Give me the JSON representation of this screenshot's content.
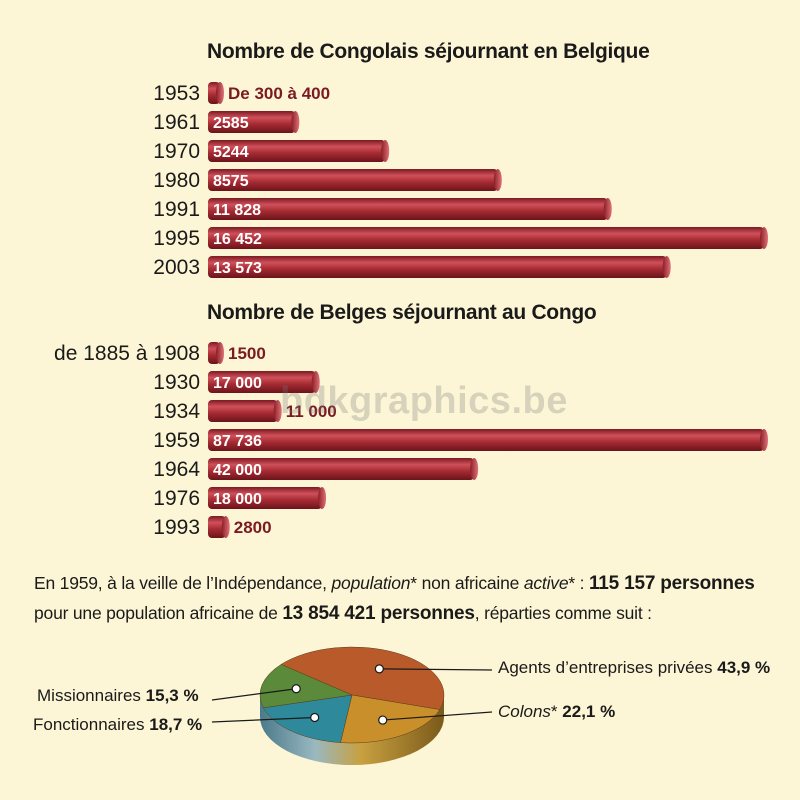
{
  "chart_data": [
    {
      "type": "bar",
      "title": "Nombre de Congolais séjournant en Belgique",
      "categories": [
        "1953",
        "1961",
        "1970",
        "1980",
        "1991",
        "1995",
        "2003"
      ],
      "values": [
        350,
        2585,
        5244,
        8575,
        11828,
        16452,
        13573
      ],
      "value_labels": [
        "De 300 à 400",
        "2585",
        "5244",
        "8575",
        "11 828",
        "16 452",
        "13 573"
      ],
      "xlim": [
        0,
        16452
      ]
    },
    {
      "type": "bar",
      "title": "Nombre de Belges séjournant au Congo",
      "categories": [
        "de 1885 à 1908",
        "1930",
        "1934",
        "1959",
        "1964",
        "1976",
        "1993"
      ],
      "values": [
        1500,
        17000,
        11000,
        87736,
        42000,
        18000,
        2800
      ],
      "value_labels": [
        "1500",
        "17 000",
        "11 000",
        "87 736",
        "42 000",
        "18 000",
        "2800"
      ],
      "xlim": [
        0,
        87736
      ]
    },
    {
      "type": "pie",
      "categories": [
        "Agents d’entreprises privées",
        "Colons",
        "Fonctionnaires",
        "Missionnaires"
      ],
      "value_labels": [
        "43,9 %",
        "22,1 %",
        "18,7 %",
        "15,3 %"
      ],
      "values": [
        43.9,
        22.1,
        18.7,
        15.3
      ],
      "colors": [
        "#b85a2a",
        "#c98f2a",
        "#2e8a9a",
        "#5a8a3a"
      ]
    }
  ],
  "intro": {
    "line1_pre": "En 1959, à la veille de l’Indépendance, ",
    "line1_pop": "population",
    "line1_star1": "* non africaine ",
    "line1_active": "active",
    "line1_star2": "* : ",
    "line1_total": "115 157 personnes",
    "line2_pre": "pour une population africaine de ",
    "line2_total": "13 854 421 personnes",
    "line2_post": ", réparties comme suit :"
  },
  "watermark": "bdkgraphics.be",
  "colors": {
    "bar": "#a52a32",
    "bar_dark": "#7a1a22",
    "background": "#fdf6d6"
  }
}
